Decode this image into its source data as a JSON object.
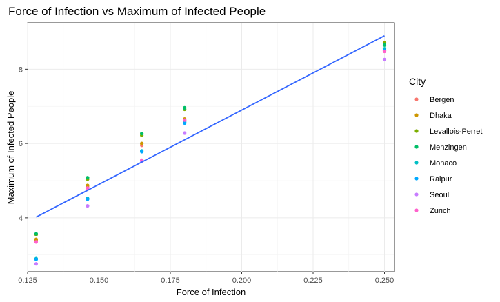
{
  "chart_data": {
    "type": "scatter",
    "title": "Force of Infection vs Maximum of Infected People",
    "xlabel": "Force of Infection",
    "ylabel": "Maximum of Infected People",
    "xlim": [
      0.125,
      0.2535
    ],
    "ylim": [
      2.55,
      9.25
    ],
    "x_ticks": [
      0.125,
      0.15,
      0.175,
      0.2,
      0.225,
      0.25
    ],
    "x_tick_labels": [
      "0.125",
      "0.150",
      "0.175",
      "0.200",
      "0.225",
      "0.250"
    ],
    "y_ticks": [
      4,
      6,
      8
    ],
    "y_tick_labels": [
      "4",
      "6",
      "8"
    ],
    "grid": true,
    "legend": {
      "title": "City",
      "placement": "right"
    },
    "series": [
      {
        "name": "Bergen",
        "color": "#F8766D",
        "x": [
          0.128,
          0.146,
          0.165,
          0.18,
          0.25
        ],
        "y": [
          3.38,
          4.83,
          5.95,
          6.62,
          8.5
        ]
      },
      {
        "name": "Dhaka",
        "color": "#CD9600",
        "x": [
          0.128,
          0.146,
          0.165,
          0.18,
          0.25
        ],
        "y": [
          3.42,
          4.87,
          6.0,
          6.66,
          8.72
        ]
      },
      {
        "name": "Levallois-Perret",
        "color": "#7CAE00",
        "x": [
          0.128,
          0.146,
          0.165,
          0.18,
          0.25
        ],
        "y": [
          3.55,
          5.04,
          6.22,
          6.92,
          8.7
        ]
      },
      {
        "name": "Menzingen",
        "color": "#00BE67",
        "x": [
          0.128,
          0.146,
          0.165,
          0.18,
          0.25
        ],
        "y": [
          3.57,
          5.08,
          6.27,
          6.96,
          8.65
        ]
      },
      {
        "name": "Monaco",
        "color": "#00BFC4",
        "x": [
          0.128,
          0.146,
          0.165,
          0.18,
          0.25
        ],
        "y": [
          2.9,
          4.52,
          5.8,
          6.58,
          8.55
        ]
      },
      {
        "name": "Raipur",
        "color": "#00A9FF",
        "x": [
          0.128,
          0.146,
          0.165,
          0.18,
          0.25
        ],
        "y": [
          2.88,
          4.5,
          5.78,
          6.55,
          8.5
        ]
      },
      {
        "name": "Seoul",
        "color": "#C77CFF",
        "x": [
          0.128,
          0.146,
          0.165,
          0.18,
          0.25
        ],
        "y": [
          2.76,
          4.32,
          5.52,
          6.28,
          8.26
        ]
      },
      {
        "name": "Zurich",
        "color": "#FF61CC",
        "x": [
          0.128,
          0.146,
          0.165,
          0.18,
          0.25
        ],
        "y": [
          3.35,
          4.8,
          5.55,
          6.63,
          8.48
        ]
      }
    ],
    "trend_line": {
      "color": "#3366FF",
      "x": [
        0.128,
        0.25
      ],
      "y": [
        4.02,
        8.9
      ]
    }
  }
}
